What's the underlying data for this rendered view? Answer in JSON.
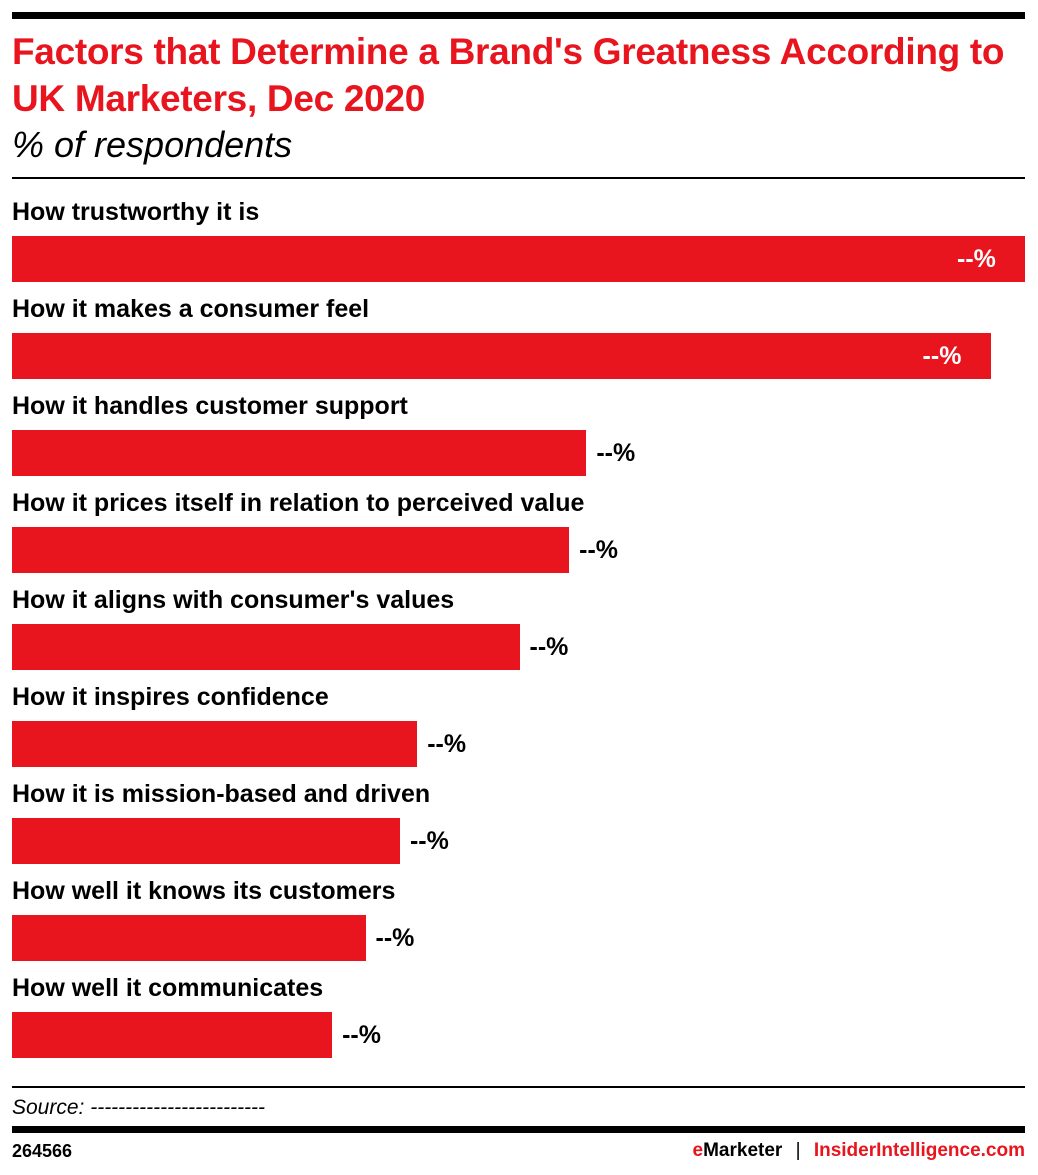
{
  "colors": {
    "accent": "#e8141e",
    "text": "#000000"
  },
  "chart_data": {
    "type": "bar",
    "orientation": "horizontal",
    "title": "Factors that Determine a Brand's Greatness According to UK Marketers, Dec 2020",
    "subtitle": "% of respondents",
    "categories": [
      "How trustworthy it is",
      "How it makes a consumer feel",
      "How it handles customer support",
      "How it prices itself in relation to perceived value",
      "How it aligns with consumer's values",
      "How it inspires confidence",
      "How it is mission-based and driven",
      "How well it knows its customers",
      "How well it communicates"
    ],
    "values": [
      100,
      96.6,
      56.7,
      55.0,
      50.1,
      40.0,
      38.3,
      34.9,
      31.6
    ],
    "data_labels": [
      "--%",
      "--%",
      "--%",
      "--%",
      "--%",
      "--%",
      "--%",
      "--%",
      "--%"
    ],
    "grid": false
  },
  "footer": {
    "source": "Source: -------------------------",
    "chart_id": "264566",
    "brand_left_e": "e",
    "brand_left_rest": "Marketer",
    "separator": "|",
    "brand_right": "InsiderIntelligence.com"
  }
}
